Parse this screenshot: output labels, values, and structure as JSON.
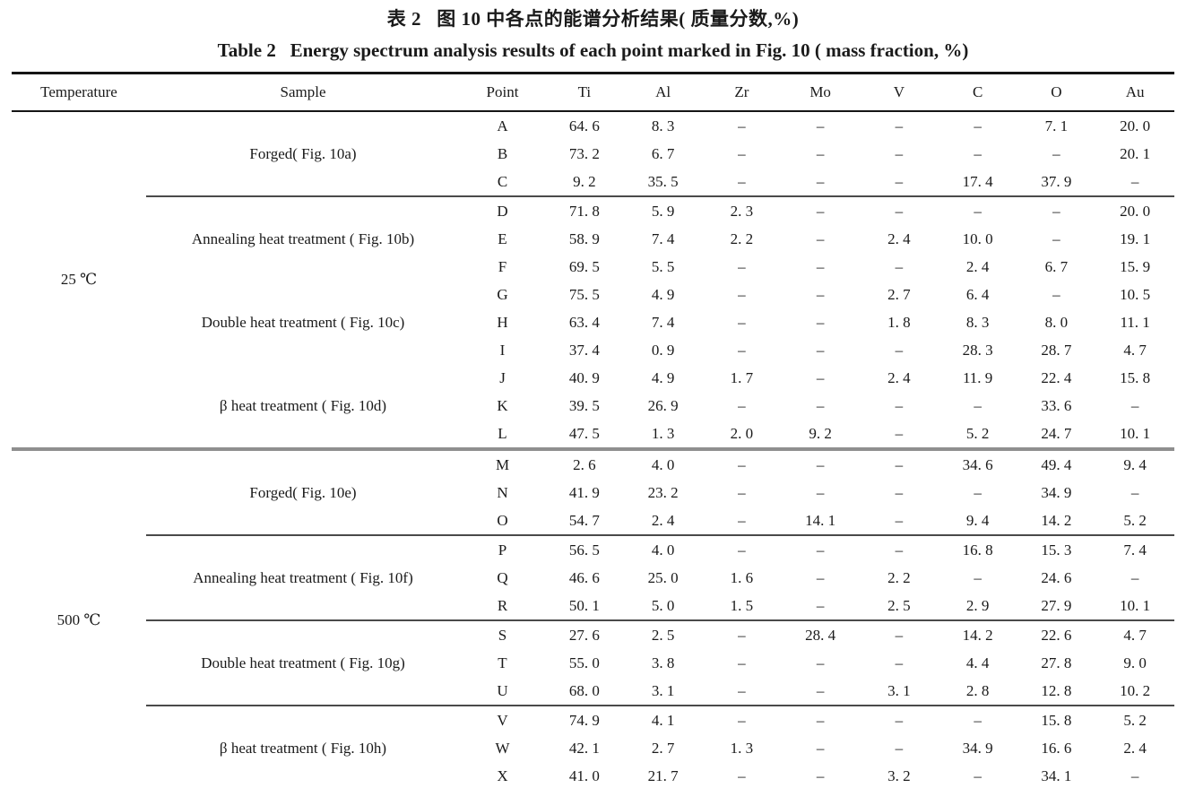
{
  "title_zh": "表 2   图 10 中各点的能谱分析结果( 质量分数,%)",
  "title_en": "Table 2   Energy spectrum analysis results of each point marked in Fig. 10 ( mass fraction, %)",
  "table": {
    "columns": [
      "Temperature",
      "Sample",
      "Point",
      "Ti",
      "Al",
      "Zr",
      "Mo",
      "V",
      "C",
      "O",
      "Au"
    ],
    "missing_symbol": "–",
    "groups": [
      {
        "temperature": "25 ℃",
        "samples": [
          {
            "label": "Forged( Fig. 10a)",
            "separator_above": false,
            "rows": [
              {
                "point": "A",
                "values": [
                  "64. 6",
                  "8. 3",
                  "–",
                  "–",
                  "–",
                  "–",
                  "7. 1",
                  "20. 0"
                ]
              },
              {
                "point": "B",
                "values": [
                  "73. 2",
                  "6. 7",
                  "–",
                  "–",
                  "–",
                  "–",
                  "–",
                  "20. 1"
                ]
              },
              {
                "point": "C",
                "values": [
                  "9. 2",
                  "35. 5",
                  "–",
                  "–",
                  "–",
                  "17. 4",
                  "37. 9",
                  "–"
                ]
              }
            ]
          },
          {
            "label": "Annealing heat treatment ( Fig. 10b)",
            "separator_above": true,
            "rows": [
              {
                "point": "D",
                "values": [
                  "71. 8",
                  "5. 9",
                  "2. 3",
                  "–",
                  "–",
                  "–",
                  "–",
                  "20. 0"
                ]
              },
              {
                "point": "E",
                "values": [
                  "58. 9",
                  "7. 4",
                  "2. 2",
                  "–",
                  "2. 4",
                  "10. 0",
                  "–",
                  "19. 1"
                ]
              },
              {
                "point": "F",
                "values": [
                  "69. 5",
                  "5. 5",
                  "–",
                  "–",
                  "–",
                  "2. 4",
                  "6. 7",
                  "15. 9"
                ]
              }
            ]
          },
          {
            "label": "Double heat treatment ( Fig. 10c)",
            "separator_above": false,
            "rows": [
              {
                "point": "G",
                "values": [
                  "75. 5",
                  "4. 9",
                  "–",
                  "–",
                  "2. 7",
                  "6. 4",
                  "–",
                  "10. 5"
                ]
              },
              {
                "point": "H",
                "values": [
                  "63. 4",
                  "7. 4",
                  "–",
                  "–",
                  "1. 8",
                  "8. 3",
                  "8. 0",
                  "11. 1"
                ]
              },
              {
                "point": "I",
                "values": [
                  "37. 4",
                  "0. 9",
                  "–",
                  "–",
                  "–",
                  "28. 3",
                  "28. 7",
                  "4. 7"
                ]
              }
            ]
          },
          {
            "label": "β heat treatment ( Fig. 10d)",
            "separator_above": false,
            "rows": [
              {
                "point": "J",
                "values": [
                  "40. 9",
                  "4. 9",
                  "1. 7",
                  "–",
                  "2. 4",
                  "11. 9",
                  "22. 4",
                  "15. 8"
                ]
              },
              {
                "point": "K",
                "values": [
                  "39. 5",
                  "26. 9",
                  "–",
                  "–",
                  "–",
                  "–",
                  "33. 6",
                  "–"
                ]
              },
              {
                "point": "L",
                "values": [
                  "47. 5",
                  "1. 3",
                  "2. 0",
                  "9. 2",
                  "–",
                  "5. 2",
                  "24. 7",
                  "10. 1"
                ]
              }
            ]
          }
        ]
      },
      {
        "temperature": "500 ℃",
        "samples": [
          {
            "label": "Forged( Fig. 10e)",
            "separator_above": false,
            "rows": [
              {
                "point": "M",
                "values": [
                  "2. 6",
                  "4. 0",
                  "–",
                  "–",
                  "–",
                  "34. 6",
                  "49. 4",
                  "9. 4"
                ]
              },
              {
                "point": "N",
                "values": [
                  "41. 9",
                  "23. 2",
                  "–",
                  "–",
                  "–",
                  "–",
                  "34. 9",
                  "–"
                ]
              },
              {
                "point": "O",
                "values": [
                  "54. 7",
                  "2. 4",
                  "–",
                  "14. 1",
                  "–",
                  "9. 4",
                  "14. 2",
                  "5. 2"
                ]
              }
            ]
          },
          {
            "label": "Annealing heat treatment ( Fig. 10f)",
            "separator_above": true,
            "rows": [
              {
                "point": "P",
                "values": [
                  "56. 5",
                  "4. 0",
                  "–",
                  "–",
                  "–",
                  "16. 8",
                  "15. 3",
                  "7. 4"
                ]
              },
              {
                "point": "Q",
                "values": [
                  "46. 6",
                  "25. 0",
                  "1. 6",
                  "–",
                  "2. 2",
                  "–",
                  "24. 6",
                  "–"
                ]
              },
              {
                "point": "R",
                "values": [
                  "50. 1",
                  "5. 0",
                  "1. 5",
                  "–",
                  "2. 5",
                  "2. 9",
                  "27. 9",
                  "10. 1"
                ]
              }
            ]
          },
          {
            "label": "Double heat treatment ( Fig. 10g)",
            "separator_above": true,
            "rows": [
              {
                "point": "S",
                "values": [
                  "27. 6",
                  "2. 5",
                  "–",
                  "28. 4",
                  "–",
                  "14. 2",
                  "22. 6",
                  "4. 7"
                ]
              },
              {
                "point": "T",
                "values": [
                  "55. 0",
                  "3. 8",
                  "–",
                  "–",
                  "–",
                  "4. 4",
                  "27. 8",
                  "9. 0"
                ]
              },
              {
                "point": "U",
                "values": [
                  "68. 0",
                  "3. 1",
                  "–",
                  "–",
                  "3. 1",
                  "2. 8",
                  "12. 8",
                  "10. 2"
                ]
              }
            ]
          },
          {
            "label": "β heat treatment ( Fig. 10h)",
            "separator_above": true,
            "rows": [
              {
                "point": "V",
                "values": [
                  "74. 9",
                  "4. 1",
                  "–",
                  "–",
                  "–",
                  "–",
                  "15. 8",
                  "5. 2"
                ]
              },
              {
                "point": "W",
                "values": [
                  "42. 1",
                  "2. 7",
                  "1. 3",
                  "–",
                  "–",
                  "34. 9",
                  "16. 6",
                  "2. 4"
                ]
              },
              {
                "point": "X",
                "values": [
                  "41. 0",
                  "21. 7",
                  "–",
                  "–",
                  "3. 2",
                  "–",
                  "34. 1",
                  "–"
                ]
              }
            ]
          }
        ]
      }
    ]
  }
}
